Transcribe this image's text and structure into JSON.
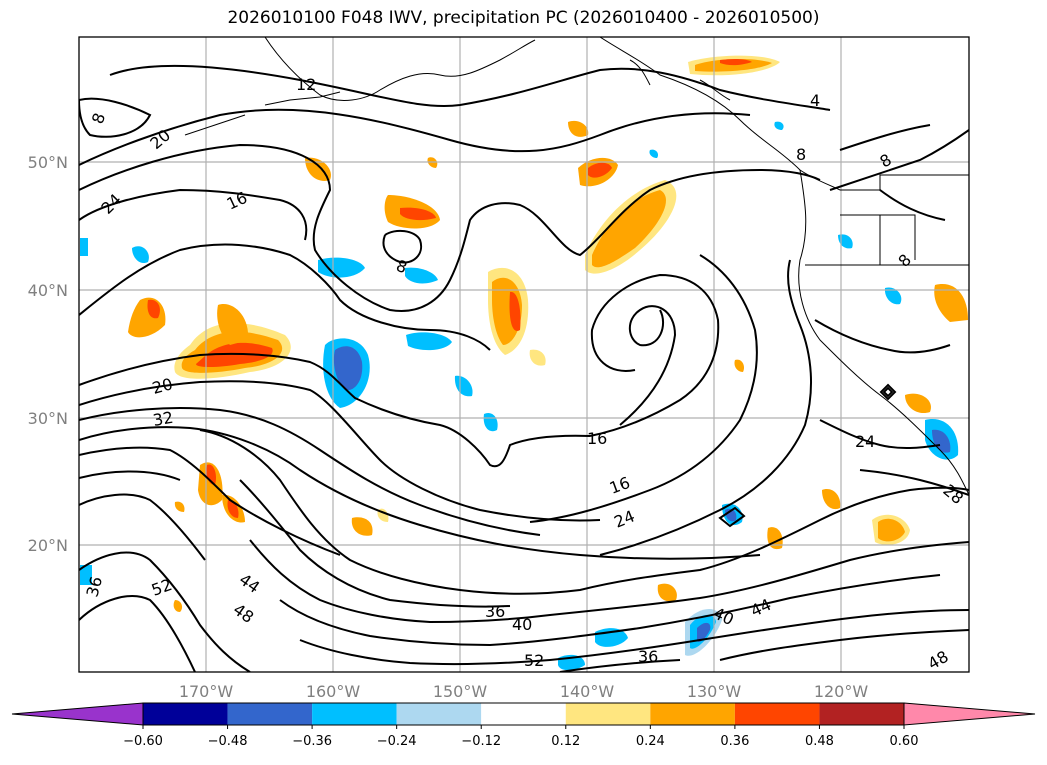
{
  "title": "2026010100 F048 IWV, precipitation PC (2026010400 - 2026010500)",
  "lat_labels": [
    "50°N",
    "40°N",
    "30°N",
    "20°N"
  ],
  "lon_labels": [
    "170°W",
    "160°W",
    "150°W",
    "140°W",
    "130°W",
    "120°W"
  ],
  "contour_labels": [
    "12",
    "20",
    "24",
    "16",
    "8",
    "8",
    "4",
    "8",
    "8",
    "20",
    "32",
    "16",
    "16",
    "24",
    "24",
    "28",
    "36",
    "40",
    "44",
    "40",
    "44",
    "48",
    "52",
    "52",
    "36",
    "36",
    "48",
    "8"
  ],
  "colorbar": {
    "ticks": [
      "−0.60",
      "−0.48",
      "−0.36",
      "−0.24",
      "−0.12",
      "0.12",
      "0.24",
      "0.36",
      "0.48",
      "0.60"
    ],
    "colors": [
      "#9933cc",
      "#000099",
      "#3366cc",
      "#00bfff",
      "#add8f0",
      "#ffffff",
      "#ffe680",
      "#ffa500",
      "#ff4500",
      "#b22222",
      "#ff88aa"
    ]
  }
}
